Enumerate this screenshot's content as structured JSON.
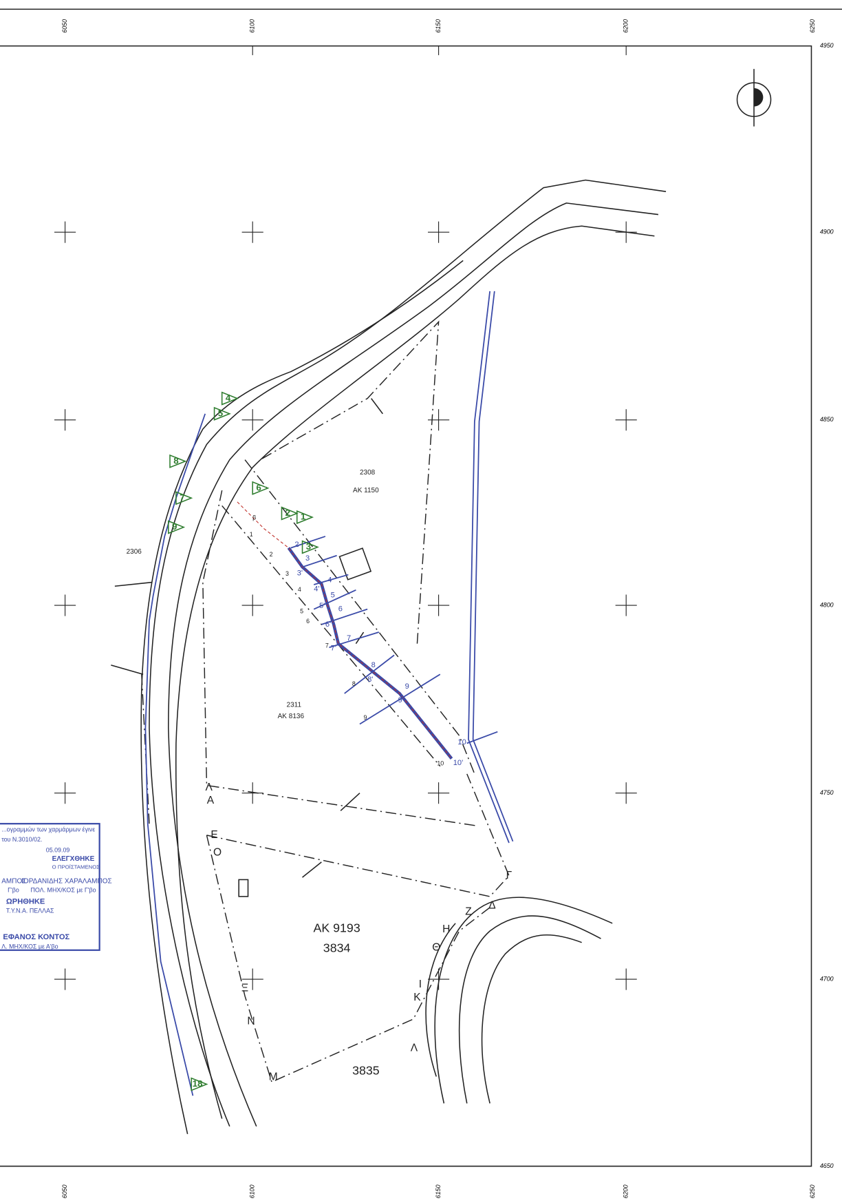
{
  "grid": {
    "x_labels": [
      "6050",
      "6100",
      "6150",
      "6200",
      "6250"
    ],
    "y_labels": [
      "4950",
      "4900",
      "4850",
      "4800",
      "4750",
      "4700",
      "4650"
    ]
  },
  "parcels": [
    "2308",
    "AK 1150",
    "2306",
    "2311",
    "AK 8136",
    "AK 9193",
    "3834",
    "3835"
  ],
  "vertices": [
    "Λ",
    "A",
    "E",
    "O",
    "Γ",
    "Δ",
    "Z",
    "H",
    "Θ",
    "I",
    "K",
    "Λ",
    "M",
    "N",
    "Ξ"
  ],
  "survey_points": [
    "2",
    "3",
    "3'",
    "4",
    "4'",
    "5",
    "5'",
    "6",
    "6'",
    "7",
    "7'",
    "8",
    "8'",
    "9",
    "9'",
    "10",
    "10'"
  ],
  "section_numbers": [
    "1",
    "2",
    "3",
    "4",
    "5",
    "6",
    "7",
    "8",
    "9",
    "10",
    "β"
  ],
  "photo_markers": [
    "4",
    "5",
    "8",
    "7",
    "9",
    "6",
    "2",
    "1",
    "3",
    "18"
  ],
  "stamp": [
    "...ογραμμών των χαρμάρμων έγινε",
    "του Ν.3010/02.",
    "05.09.09",
    "ΕΛΕΓΧΘΗΚΕ",
    "Ο ΠΡΟΪΣΤΑΜΕΝΟΣ",
    "ΑΜΠΟΣ",
    "ΙΟΡΔΑΝΙΔΗΣ ΧΑΡΑΛΑΜΠΟΣ",
    "Γ'βο",
    "ΠΟΛ. ΜΗΧ/ΚΟΣ με Γ'βο",
    "ΩΡΗΘΗΚΕ",
    "Τ.Υ.Ν.Α. ΠΕΛΛΑΣ",
    "ΕΦΑΝΟΣ ΚΟΝΤΟΣ",
    "Λ. ΜΗΧ/ΚΟΣ με Α'βο"
  ]
}
